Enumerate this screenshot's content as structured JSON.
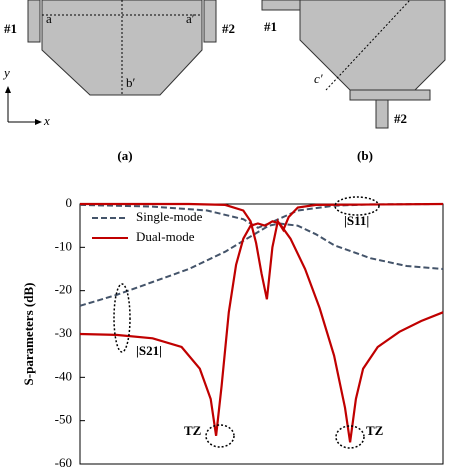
{
  "figure": {
    "panel_a": {
      "port1": "#1",
      "port2": "#2",
      "point_a": "a",
      "point_a2": "a′",
      "point_b2": "b′",
      "axis_x": "x",
      "axis_y": "y",
      "caption": "(a)"
    },
    "panel_b": {
      "port1": "#1",
      "port2": "#2",
      "point_c2": "c′",
      "caption": "(b)"
    }
  },
  "chart_data": {
    "type": "line",
    "ylabel": "S-parameters (dB)",
    "xlim": [
      0,
      100
    ],
    "ylim": [
      -60,
      0
    ],
    "yticks": [
      0,
      -10,
      -20,
      -30,
      -40,
      -50,
      -60
    ],
    "series": [
      {
        "name": "Single-mode",
        "color": "#44546a",
        "dash": true,
        "x": [
          0,
          10,
          20,
          30,
          40,
          45,
          50,
          52,
          55,
          60,
          65,
          70,
          80,
          90,
          100
        ],
        "values": [
          -23.5,
          -21,
          -18,
          -15,
          -11,
          -8.5,
          -6,
          -5,
          -4.5,
          -5,
          -7,
          -9.5,
          -12.5,
          -14.3,
          -15
        ]
      },
      {
        "name": "Single-mode",
        "color": "#44546a",
        "dash": true,
        "legend": false,
        "x": [
          0,
          20,
          35,
          45,
          49,
          52,
          60,
          70,
          80,
          100
        ],
        "values": [
          -0.2,
          -0.6,
          -1.5,
          -3.5,
          -5.5,
          -4.5,
          -1.5,
          -0.4,
          -0.1,
          0
        ]
      },
      {
        "name": "Dual-mode",
        "color": "#c00000",
        "dash": false,
        "x": [
          0,
          10,
          20,
          28,
          33,
          36,
          37.5,
          39,
          41,
          43,
          45,
          47,
          49,
          51,
          53,
          55,
          58,
          62,
          66,
          70,
          73,
          74.4,
          76,
          78,
          82,
          88,
          94,
          100
        ],
        "values": [
          -30,
          -30.2,
          -31,
          -33,
          -38,
          -45,
          -53.5,
          -42,
          -25,
          -14,
          -8,
          -5,
          -4.5,
          -5,
          -4,
          -4.5,
          -8,
          -15,
          -24,
          -35,
          -47,
          -55,
          -45,
          -38,
          -33,
          -29.5,
          -27,
          -25
        ]
      },
      {
        "name": "Dual-mode",
        "color": "#c00000",
        "dash": false,
        "legend": false,
        "x": [
          0,
          30,
          40,
          45,
          47,
          48.5,
          50,
          51.5,
          53,
          54.5,
          56,
          57.5,
          60,
          65,
          100
        ],
        "values": [
          0,
          0,
          -0.2,
          -1.5,
          -4,
          -9,
          -16,
          -22,
          -10,
          -4,
          -6,
          -3,
          -0.8,
          -0.2,
          0
        ]
      }
    ],
    "annotations": [
      "|S11|",
      "|S21|",
      "TZ",
      "TZ"
    ]
  }
}
